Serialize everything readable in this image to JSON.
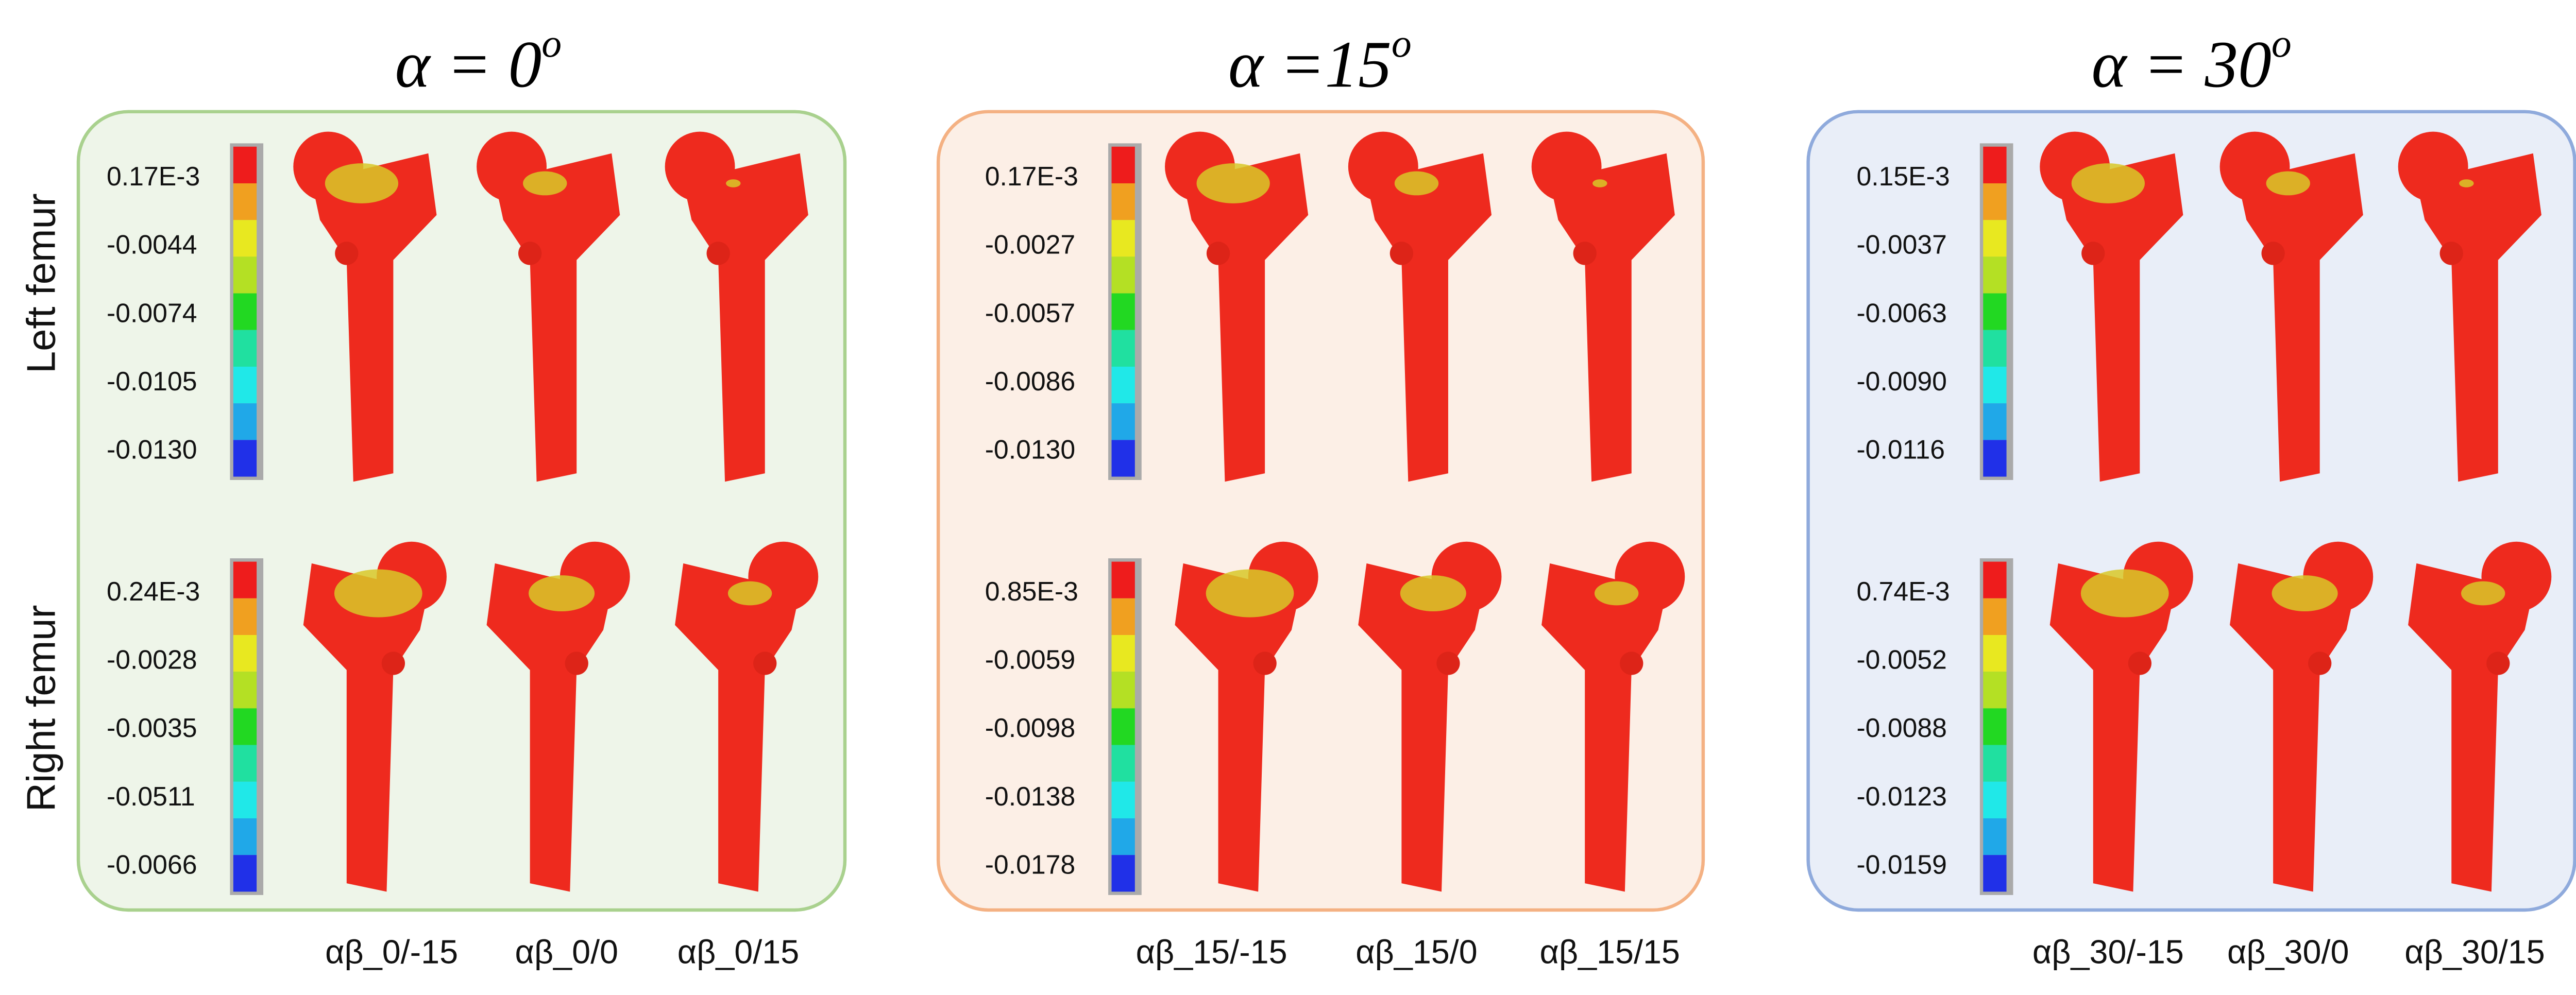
{
  "row_labels": [
    "Left femur",
    "Right femur"
  ],
  "panels": [
    {
      "title": "α = 0",
      "title_sup": "o",
      "scales": [
        [
          "0.17E-3",
          "-0.0044",
          "-0.0074",
          "-0.0105",
          "-0.0130"
        ],
        [
          "0.24E-3",
          "-0.0028",
          "-0.0035",
          "-0.0511",
          "-0.0066"
        ]
      ],
      "cases": [
        "αβ_0/-15",
        "αβ_0/0",
        "αβ_0/15"
      ]
    },
    {
      "title": "α =15",
      "title_sup": "o",
      "scales": [
        [
          "0.17E-3",
          "-0.0027",
          "-0.0057",
          "-0.0086",
          "-0.0130"
        ],
        [
          "0.85E-3",
          "-0.0059",
          "-0.0098",
          "-0.0138",
          "-0.0178"
        ]
      ],
      "cases": [
        "αβ_15/-15",
        "αβ_15/0",
        "αβ_15/15"
      ]
    },
    {
      "title": "α = 30",
      "title_sup": "o",
      "scales": [
        [
          "0.15E-3",
          "-0.0037",
          "-0.0063",
          "-0.0090",
          "-0.0116"
        ],
        [
          "0.74E-3",
          "-0.0052",
          "-0.0088",
          "-0.0123",
          "-0.0159"
        ]
      ],
      "cases": [
        "αβ_30/-15",
        "αβ_30/0",
        "αβ_30/15"
      ]
    }
  ]
}
